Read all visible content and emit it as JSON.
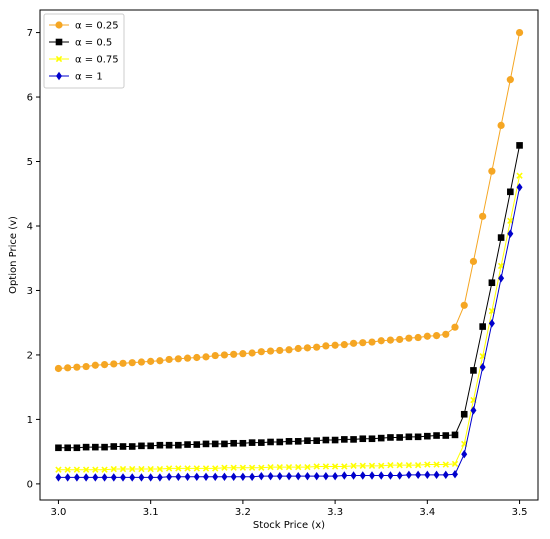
{
  "chart_data": {
    "type": "line",
    "title": "",
    "xlabel": "Stock Price (x)",
    "ylabel": "Option Price (v)",
    "xlim": [
      2.98,
      3.52
    ],
    "ylim": [
      -0.25,
      7.35
    ],
    "xticks": [
      3.0,
      3.1,
      3.2,
      3.3,
      3.4,
      3.5
    ],
    "xtick_labels": [
      "3.0",
      "3.1",
      "3.2",
      "3.3",
      "3.4",
      "3.5"
    ],
    "yticks": [
      0,
      1,
      2,
      3,
      4,
      5,
      6,
      7
    ],
    "ytick_labels": [
      "0",
      "1",
      "2",
      "3",
      "4",
      "5",
      "6",
      "7"
    ],
    "grid": false,
    "legend_position": "top-left",
    "x": [
      3.0,
      3.01,
      3.02,
      3.03,
      3.04,
      3.05,
      3.06,
      3.07,
      3.08,
      3.09,
      3.1,
      3.11,
      3.12,
      3.13,
      3.14,
      3.15,
      3.16,
      3.17,
      3.18,
      3.19,
      3.2,
      3.21,
      3.22,
      3.23,
      3.24,
      3.25,
      3.26,
      3.27,
      3.28,
      3.29,
      3.3,
      3.31,
      3.32,
      3.33,
      3.34,
      3.35,
      3.36,
      3.37,
      3.38,
      3.39,
      3.4,
      3.41,
      3.42,
      3.43,
      3.44,
      3.45,
      3.46,
      3.47,
      3.48,
      3.49,
      3.5
    ],
    "series": [
      {
        "name": "α = 0.25",
        "color": "#f5a623",
        "marker": "circle",
        "values": [
          1.79,
          1.8,
          1.81,
          1.82,
          1.84,
          1.85,
          1.86,
          1.87,
          1.88,
          1.89,
          1.9,
          1.91,
          1.93,
          1.94,
          1.95,
          1.96,
          1.97,
          1.99,
          2.0,
          2.01,
          2.02,
          2.03,
          2.05,
          2.06,
          2.07,
          2.08,
          2.1,
          2.11,
          2.12,
          2.14,
          2.15,
          2.16,
          2.18,
          2.19,
          2.2,
          2.22,
          2.23,
          2.24,
          2.26,
          2.27,
          2.29,
          2.3,
          2.32,
          2.43,
          2.77,
          3.45,
          4.15,
          4.85,
          5.56,
          6.27,
          7.0
        ]
      },
      {
        "name": "α = 0.5",
        "color": "#000000",
        "marker": "square",
        "values": [
          0.56,
          0.56,
          0.56,
          0.57,
          0.57,
          0.57,
          0.58,
          0.58,
          0.58,
          0.59,
          0.59,
          0.6,
          0.6,
          0.6,
          0.61,
          0.61,
          0.62,
          0.62,
          0.62,
          0.63,
          0.63,
          0.64,
          0.64,
          0.65,
          0.65,
          0.66,
          0.66,
          0.67,
          0.67,
          0.68,
          0.68,
          0.69,
          0.69,
          0.7,
          0.7,
          0.71,
          0.72,
          0.72,
          0.73,
          0.73,
          0.74,
          0.75,
          0.75,
          0.76,
          1.08,
          1.76,
          2.44,
          3.12,
          3.82,
          4.53,
          5.25
        ]
      },
      {
        "name": "α = 0.75",
        "color": "#ffff00",
        "marker": "x",
        "values": [
          0.22,
          0.22,
          0.22,
          0.22,
          0.22,
          0.22,
          0.23,
          0.23,
          0.23,
          0.23,
          0.23,
          0.23,
          0.24,
          0.24,
          0.24,
          0.24,
          0.24,
          0.24,
          0.25,
          0.25,
          0.25,
          0.25,
          0.25,
          0.26,
          0.26,
          0.26,
          0.26,
          0.26,
          0.27,
          0.27,
          0.27,
          0.27,
          0.28,
          0.28,
          0.28,
          0.28,
          0.29,
          0.29,
          0.29,
          0.29,
          0.3,
          0.3,
          0.3,
          0.31,
          0.62,
          1.3,
          1.98,
          2.68,
          3.38,
          4.08,
          4.78
        ]
      },
      {
        "name": "α = 1",
        "color": "#0000cc",
        "marker": "diamond",
        "values": [
          0.1,
          0.1,
          0.1,
          0.1,
          0.1,
          0.1,
          0.1,
          0.1,
          0.1,
          0.1,
          0.1,
          0.1,
          0.11,
          0.11,
          0.11,
          0.11,
          0.11,
          0.11,
          0.11,
          0.11,
          0.11,
          0.11,
          0.12,
          0.12,
          0.12,
          0.12,
          0.12,
          0.12,
          0.12,
          0.12,
          0.12,
          0.13,
          0.13,
          0.13,
          0.13,
          0.13,
          0.13,
          0.13,
          0.14,
          0.14,
          0.14,
          0.14,
          0.14,
          0.15,
          0.46,
          1.14,
          1.81,
          2.49,
          3.19,
          3.88,
          4.6
        ]
      }
    ]
  }
}
